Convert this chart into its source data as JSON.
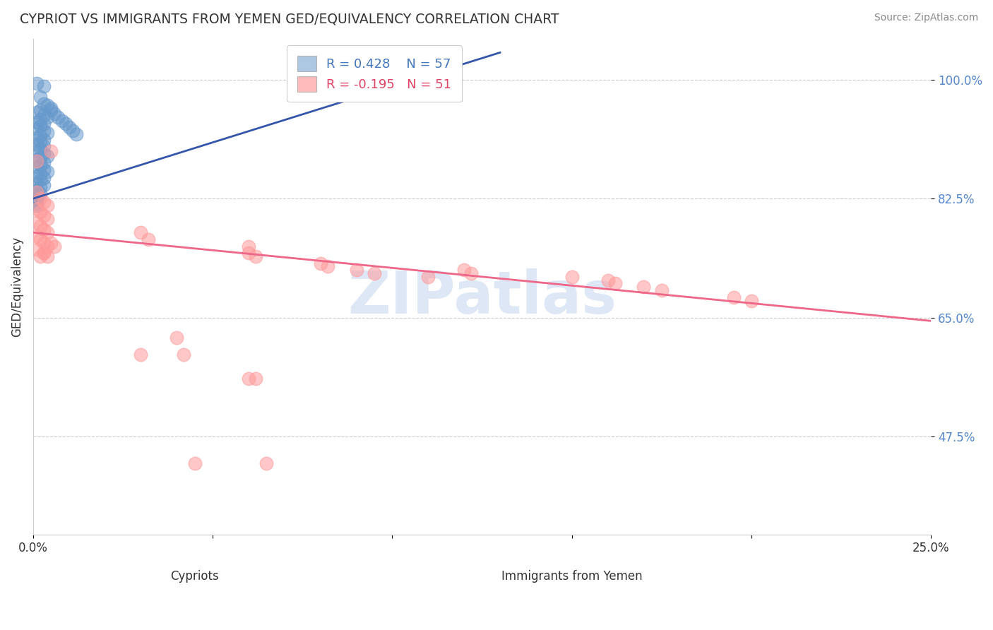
{
  "title": "CYPRIOT VS IMMIGRANTS FROM YEMEN GED/EQUIVALENCY CORRELATION CHART",
  "source": "Source: ZipAtlas.com",
  "xlabel_cypriots": "Cypriots",
  "xlabel_yemen": "Immigrants from Yemen",
  "ylabel": "GED/Equivalency",
  "R_blue": 0.428,
  "N_blue": 57,
  "R_pink": -0.195,
  "N_pink": 51,
  "xlim": [
    0.0,
    0.25
  ],
  "ylim": [
    0.33,
    1.06
  ],
  "yticks": [
    0.475,
    0.65,
    0.825,
    1.0
  ],
  "ytick_labels": [
    "47.5%",
    "65.0%",
    "82.5%",
    "100.0%"
  ],
  "xticks": [
    0.0,
    0.05,
    0.1,
    0.15,
    0.2,
    0.25
  ],
  "xtick_labels": [
    "0.0%",
    "",
    "",
    "",
    "",
    "25.0%"
  ],
  "blue_color": "#6699CC",
  "pink_color": "#FF9999",
  "blue_line_color": "#3355AA",
  "pink_line_color": "#EE6688",
  "watermark": "ZIPatlas",
  "blue_line": [
    [
      0.0,
      0.825
    ],
    [
      0.13,
      1.04
    ]
  ],
  "pink_line": [
    [
      0.0,
      0.775
    ],
    [
      0.25,
      0.645
    ]
  ],
  "blue_dots": [
    [
      0.001,
      0.995
    ],
    [
      0.003,
      0.99
    ],
    [
      0.002,
      0.975
    ],
    [
      0.003,
      0.965
    ],
    [
      0.004,
      0.962
    ],
    [
      0.005,
      0.958
    ],
    [
      0.002,
      0.955
    ],
    [
      0.001,
      0.952
    ],
    [
      0.003,
      0.948
    ],
    [
      0.004,
      0.945
    ],
    [
      0.002,
      0.942
    ],
    [
      0.001,
      0.938
    ],
    [
      0.003,
      0.935
    ],
    [
      0.002,
      0.932
    ],
    [
      0.001,
      0.928
    ],
    [
      0.003,
      0.925
    ],
    [
      0.004,
      0.922
    ],
    [
      0.002,
      0.918
    ],
    [
      0.001,
      0.915
    ],
    [
      0.003,
      0.912
    ],
    [
      0.002,
      0.908
    ],
    [
      0.001,
      0.905
    ],
    [
      0.003,
      0.902
    ],
    [
      0.002,
      0.898
    ],
    [
      0.001,
      0.895
    ],
    [
      0.003,
      0.892
    ],
    [
      0.004,
      0.888
    ],
    [
      0.002,
      0.885
    ],
    [
      0.001,
      0.882
    ],
    [
      0.003,
      0.878
    ],
    [
      0.002,
      0.875
    ],
    [
      0.001,
      0.872
    ],
    [
      0.003,
      0.868
    ],
    [
      0.004,
      0.865
    ],
    [
      0.002,
      0.862
    ],
    [
      0.001,
      0.858
    ],
    [
      0.003,
      0.855
    ],
    [
      0.002,
      0.852
    ],
    [
      0.001,
      0.848
    ],
    [
      0.003,
      0.845
    ],
    [
      0.002,
      0.842
    ],
    [
      0.001,
      0.838
    ],
    [
      0.005,
      0.955
    ],
    [
      0.006,
      0.95
    ],
    [
      0.007,
      0.945
    ],
    [
      0.008,
      0.94
    ],
    [
      0.009,
      0.935
    ],
    [
      0.01,
      0.93
    ],
    [
      0.011,
      0.925
    ],
    [
      0.012,
      0.92
    ],
    [
      0.001,
      0.835
    ],
    [
      0.002,
      0.832
    ],
    [
      0.001,
      0.828
    ],
    [
      0.001,
      0.825
    ],
    [
      0.001,
      0.822
    ],
    [
      0.001,
      0.818
    ],
    [
      0.001,
      0.815
    ]
  ],
  "pink_dots": [
    [
      0.001,
      0.835
    ],
    [
      0.002,
      0.825
    ],
    [
      0.003,
      0.82
    ],
    [
      0.004,
      0.815
    ],
    [
      0.001,
      0.81
    ],
    [
      0.002,
      0.805
    ],
    [
      0.003,
      0.8
    ],
    [
      0.004,
      0.795
    ],
    [
      0.001,
      0.79
    ],
    [
      0.002,
      0.785
    ],
    [
      0.003,
      0.78
    ],
    [
      0.004,
      0.775
    ],
    [
      0.001,
      0.77
    ],
    [
      0.002,
      0.765
    ],
    [
      0.003,
      0.76
    ],
    [
      0.004,
      0.755
    ],
    [
      0.001,
      0.75
    ],
    [
      0.003,
      0.745
    ],
    [
      0.002,
      0.74
    ],
    [
      0.001,
      0.88
    ],
    [
      0.003,
      0.745
    ],
    [
      0.004,
      0.74
    ],
    [
      0.005,
      0.76
    ],
    [
      0.006,
      0.755
    ],
    [
      0.005,
      0.895
    ],
    [
      0.03,
      0.775
    ],
    [
      0.032,
      0.765
    ],
    [
      0.06,
      0.755
    ],
    [
      0.06,
      0.745
    ],
    [
      0.062,
      0.74
    ],
    [
      0.08,
      0.73
    ],
    [
      0.082,
      0.725
    ],
    [
      0.09,
      0.72
    ],
    [
      0.095,
      0.715
    ],
    [
      0.11,
      0.71
    ],
    [
      0.12,
      0.72
    ],
    [
      0.122,
      0.715
    ],
    [
      0.15,
      0.71
    ],
    [
      0.16,
      0.705
    ],
    [
      0.162,
      0.7
    ],
    [
      0.17,
      0.695
    ],
    [
      0.175,
      0.69
    ],
    [
      0.195,
      0.68
    ],
    [
      0.2,
      0.675
    ],
    [
      0.04,
      0.62
    ],
    [
      0.03,
      0.595
    ],
    [
      0.042,
      0.595
    ],
    [
      0.06,
      0.56
    ],
    [
      0.062,
      0.56
    ],
    [
      0.045,
      0.435
    ],
    [
      0.065,
      0.435
    ]
  ]
}
